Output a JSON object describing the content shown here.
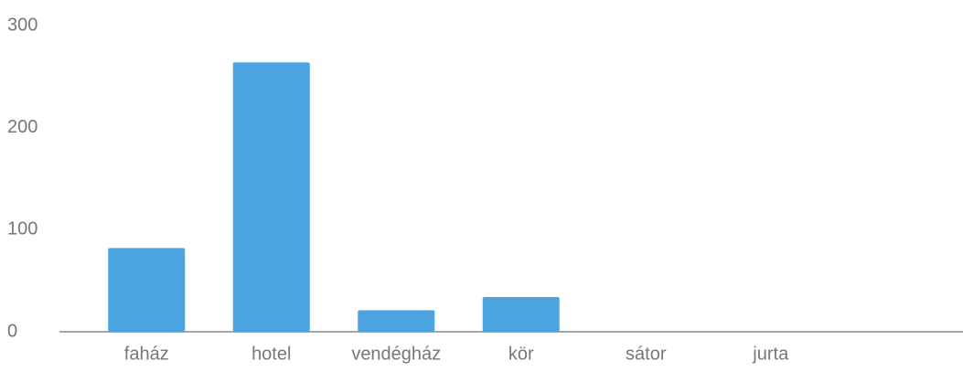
{
  "chart_data": {
    "type": "bar",
    "categories": [
      "faház",
      "hotel",
      "vendégház",
      "kör",
      "sátor",
      "jurta"
    ],
    "values": [
      82,
      264,
      21,
      34,
      0,
      0
    ],
    "color": "#4ba3e0",
    "ylim": [
      0,
      300
    ],
    "yticks": [
      0,
      100,
      200,
      300
    ],
    "grid": false
  }
}
